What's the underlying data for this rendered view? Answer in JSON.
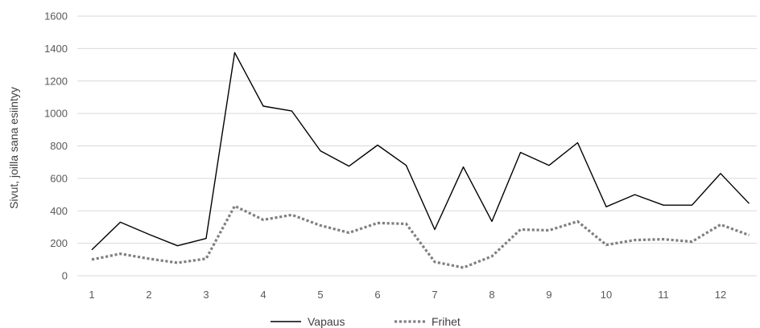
{
  "chart_data": {
    "type": "line",
    "title": "",
    "ylabel": "Sivut, joilla sana esiintyy",
    "xlabel": "",
    "ylim": [
      0,
      1600
    ],
    "y_ticks": [
      0,
      200,
      400,
      600,
      800,
      1000,
      1200,
      1400,
      1600
    ],
    "x_ticks": [
      1,
      2,
      3,
      4,
      5,
      6,
      7,
      8,
      9,
      10,
      11,
      12
    ],
    "x": [
      1,
      1.5,
      2,
      2.5,
      3,
      3.5,
      4,
      4.5,
      5,
      5.5,
      6,
      6.5,
      7,
      7.5,
      8,
      8.5,
      9,
      9.5,
      10,
      10.5,
      11,
      11.5,
      12,
      12.5
    ],
    "grid": "horizontal",
    "legend_position": "bottom",
    "series": [
      {
        "name": "Vapaus",
        "style": "solid",
        "color": "#000000",
        "values": [
          160,
          330,
          255,
          185,
          230,
          1375,
          1045,
          1015,
          770,
          675,
          805,
          680,
          285,
          670,
          335,
          760,
          680,
          820,
          425,
          500,
          435,
          435,
          630,
          445
        ]
      },
      {
        "name": "Frihet",
        "style": "dotted",
        "color": "#808080",
        "values": [
          100,
          135,
          105,
          80,
          105,
          430,
          345,
          375,
          310,
          265,
          325,
          320,
          85,
          50,
          120,
          285,
          280,
          335,
          190,
          220,
          225,
          210,
          315,
          250
        ]
      }
    ]
  }
}
